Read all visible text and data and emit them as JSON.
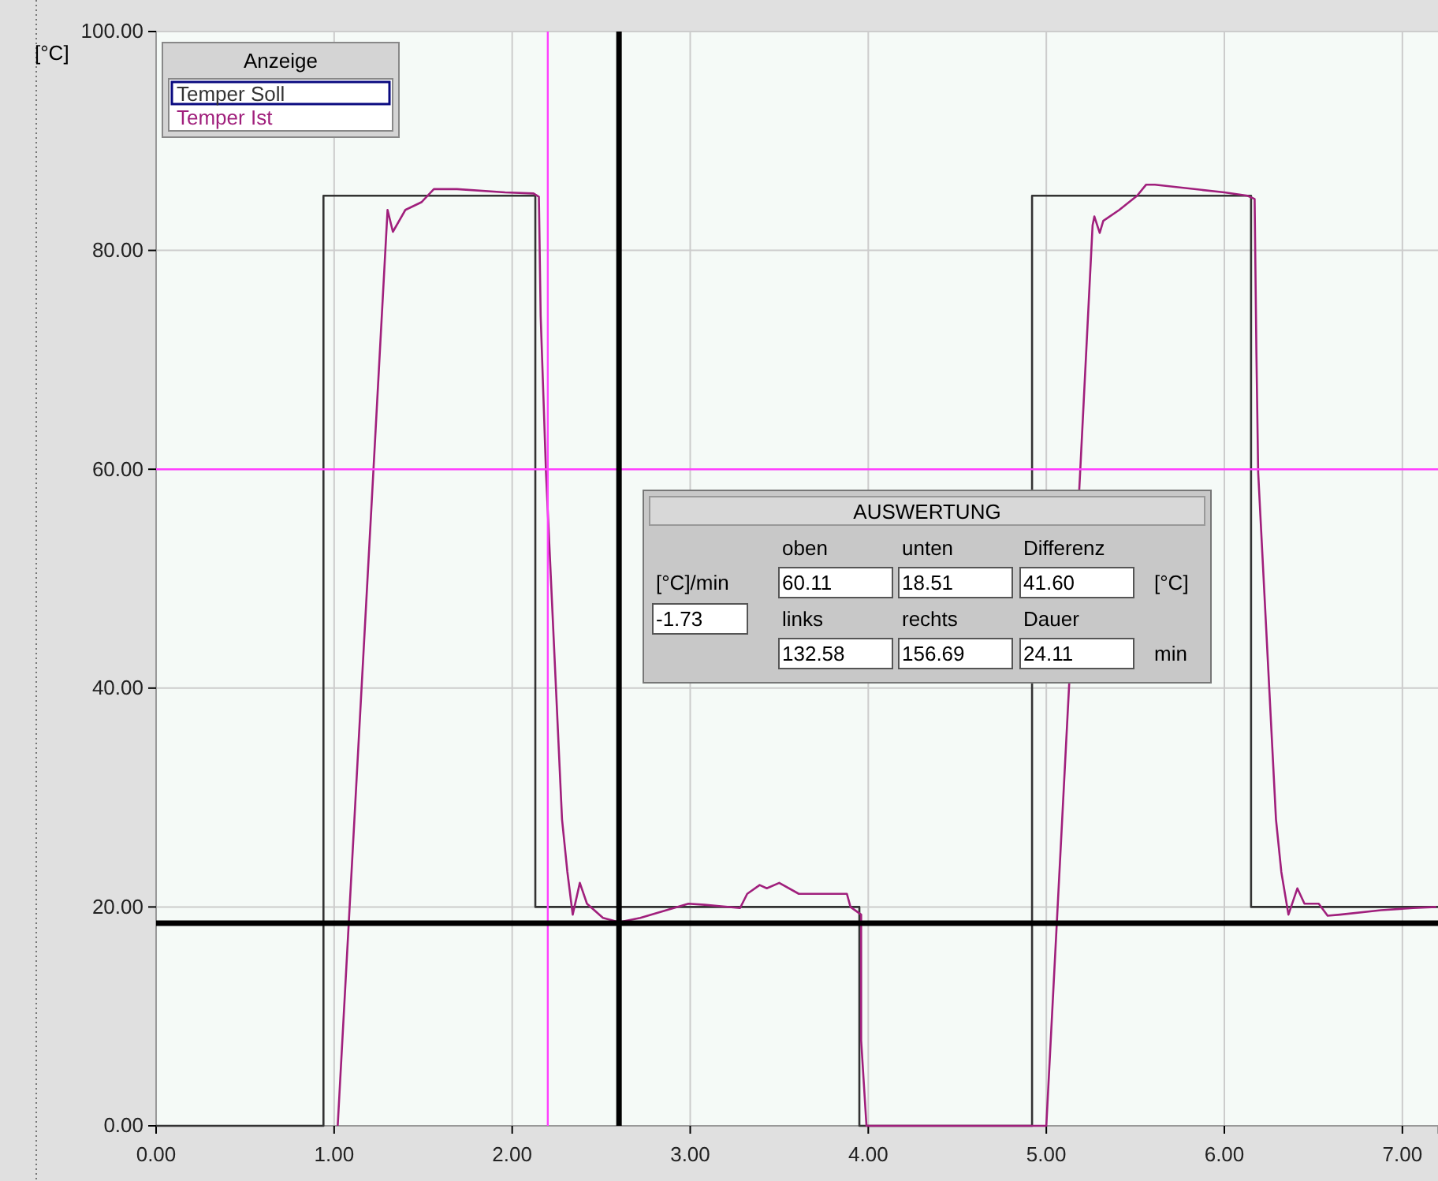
{
  "chart_data": {
    "type": "line",
    "ylabel": "[°C]",
    "legend_title": "Anzeige",
    "legend": "top left",
    "grid": true,
    "marker": "none",
    "line_style": "solid",
    "xlim": [
      0,
      7.2
    ],
    "ylim": [
      0,
      100
    ],
    "xticks": [
      {
        "value": 0,
        "label": "0.00"
      },
      {
        "value": 1,
        "label": "1.00"
      },
      {
        "value": 2,
        "label": "2.00"
      },
      {
        "value": 3,
        "label": "3.00"
      },
      {
        "value": 4,
        "label": "4.00"
      },
      {
        "value": 5,
        "label": "5.00"
      },
      {
        "value": 6,
        "label": "6.00"
      },
      {
        "value": 7,
        "label": "7.00"
      }
    ],
    "yticks": [
      {
        "value": 0,
        "label": "0.00"
      },
      {
        "value": 20,
        "label": "20.00"
      },
      {
        "value": 40,
        "label": "40.00"
      },
      {
        "value": 60,
        "label": "60.00"
      },
      {
        "value": 80,
        "label": "80.00"
      },
      {
        "value": 100,
        "label": "100.00"
      }
    ],
    "series": [
      {
        "name": "Temper Soll",
        "color": "#333333",
        "x": [
          0,
          0.94,
          0.94,
          2.13,
          2.13,
          3.95,
          3.95,
          4.92,
          4.92,
          6.15,
          6.15,
          7.2
        ],
        "values": [
          0,
          0,
          85,
          85,
          20,
          20,
          0,
          0,
          85,
          85,
          20,
          20
        ]
      },
      {
        "name": "Temper Ist",
        "color": "#a01f7c",
        "x": [
          1.02,
          1.22,
          1.3,
          1.33,
          1.4,
          1.49,
          1.56,
          1.69,
          1.96,
          2.12,
          2.15,
          2.16,
          2.19,
          2.28,
          2.31,
          2.34,
          2.38,
          2.42,
          2.51,
          2.6,
          2.72,
          2.99,
          3.08,
          3.28,
          3.32,
          3.39,
          3.43,
          3.5,
          3.61,
          3.88,
          3.9,
          3.96,
          3.96,
          3.99,
          5.0,
          5.19,
          5.26,
          5.27,
          5.3,
          5.32,
          5.41,
          5.51,
          5.56,
          5.61,
          6.0,
          6.13,
          6.17,
          6.18,
          6.19,
          6.29,
          6.32,
          6.36,
          6.41,
          6.45,
          6.53,
          6.58,
          6.65,
          6.88,
          7.06,
          7.19
        ],
        "values": [
          0,
          59.7,
          83.7,
          81.7,
          83.7,
          84.4,
          85.6,
          85.6,
          85.3,
          85.2,
          84.9,
          74,
          59.7,
          28,
          23.2,
          19.3,
          22.2,
          20.3,
          19.0,
          18.6,
          19.0,
          20.3,
          20.2,
          19.9,
          21.2,
          22.0,
          21.7,
          22.2,
          21.2,
          21.2,
          20.0,
          19.3,
          7.8,
          0,
          0,
          59.7,
          82.3,
          83.1,
          81.6,
          82.7,
          83.7,
          85.0,
          86.0,
          86.0,
          85.3,
          85.0,
          84.7,
          70.7,
          59.7,
          28,
          23.2,
          19.3,
          21.7,
          20.3,
          20.3,
          19.2,
          19.3,
          19.7,
          19.9,
          20.0
        ]
      }
    ],
    "ref_lines": [
      {
        "axis": "x",
        "value": 2.2,
        "color": "#ff40ff"
      },
      {
        "axis": "y",
        "value": 60,
        "color": "#ff40ff"
      },
      {
        "axis": "x",
        "value": 2.6,
        "color": "#000000"
      },
      {
        "axis": "y",
        "value": 18.51,
        "color": "#000000"
      }
    ],
    "annotations": [
      "AUSWERTUNG",
      "oben",
      "unten",
      "Differenz",
      "[°C]/min",
      "60.11",
      "18.51",
      "41.60",
      "[°C]",
      "-1.73",
      "links",
      "rechts",
      "Dauer",
      "132.58",
      "156.69",
      "24.11",
      "min"
    ]
  }
}
